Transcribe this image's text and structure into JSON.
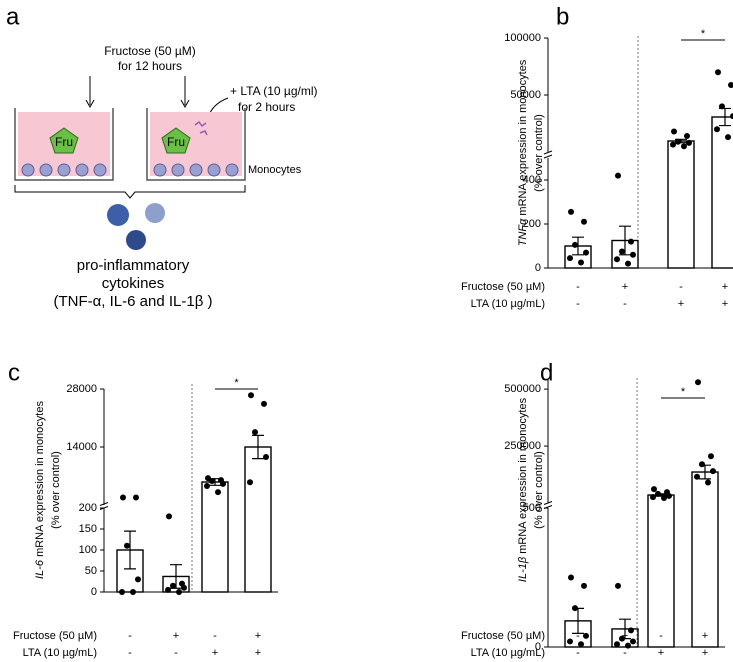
{
  "diagram": {
    "panel": "a",
    "step1": [
      "Fructose (50 µM)",
      "for 12 hours"
    ],
    "step2": [
      "+ LTA (10 µg/ml)",
      "for 2 hours"
    ],
    "marker": "Fru",
    "cells": "Monocytes",
    "outcome": [
      "pro-inflammatory",
      "cytokines",
      "(TNF-α, IL-6 and IL-1β )"
    ]
  },
  "chart_data": [
    {
      "type": "bar",
      "panel": "b",
      "ylabel": {
        "gene": "TNFα",
        "text": " mRNA expression in monocytes",
        "unit": "(% over control)"
      },
      "conditions": [
        {
          "name": "Fructose (50 µM)",
          "signs": [
            "-",
            "+",
            "-",
            "+"
          ]
        },
        {
          "name": "LTA (10 µg/mL)",
          "signs": [
            "-",
            "-",
            "+",
            "+"
          ]
        }
      ],
      "segments": [
        {
          "ylim": [
            0,
            500
          ],
          "yticks": [
            0,
            200,
            400
          ]
        },
        {
          "ylim": [
            0,
            100000
          ],
          "yticks": [
            50000,
            100000
          ]
        }
      ],
      "segment": [
        0,
        0,
        1,
        1
      ],
      "color": "#000000",
      "values": [
        100,
        125,
        9650,
        30700
      ],
      "errors": [
        40,
        65,
        1500,
        7500
      ],
      "points": [
        [
          255,
          210,
          105,
          70,
          45,
          25
        ],
        [
          420,
          120,
          75,
          60,
          40,
          20
        ],
        [
          18000,
          14000,
          9000,
          8000,
          6500,
          5000
        ],
        [
          70000,
          58800,
          40000,
          31500,
          20000,
          13000
        ]
      ],
      "significance": {
        "label": "*",
        "between": [
          2,
          3
        ]
      }
    },
    {
      "type": "bar",
      "panel": "c",
      "ylabel": {
        "gene": "IL-6",
        "text": " mRNA expression in monocytes",
        "unit": "(% over control)"
      },
      "conditions": [
        {
          "name": "Fructose (50 µM)",
          "signs": [
            "-",
            "+",
            "-",
            "+"
          ]
        },
        {
          "name": "LTA (10 µg/mL)",
          "signs": [
            "-",
            "-",
            "+",
            "+"
          ]
        }
      ],
      "segments": [
        {
          "ylim": [
            0,
            200
          ],
          "yticks": [
            0,
            50,
            100,
            150,
            200
          ]
        },
        {
          "ylim": [
            0,
            28000
          ],
          "yticks": [
            14000,
            28000
          ]
        }
      ],
      "segment": [
        0,
        0,
        1,
        1
      ],
      "color": "#000000",
      "values": [
        100,
        37,
        5550,
        14000
      ],
      "errors": [
        45,
        28,
        800,
        2800
      ],
      "points": [
        [
          225,
          225,
          110,
          30,
          0,
          0
        ],
        [
          180,
          20,
          15,
          10,
          5,
          0
        ],
        [
          6500,
          6000,
          5800,
          5100,
          4600,
          3100
        ],
        [
          26500,
          24400,
          17600,
          11600,
          5500
        ]
      ],
      "significance": {
        "label": "*",
        "between": [
          2,
          3
        ]
      }
    },
    {
      "type": "bar",
      "panel": "d",
      "ylabel": {
        "gene": "IL-1β",
        "text": " mRNA expression in monocytes",
        "unit": "(% over control)"
      },
      "conditions": [
        {
          "name": "Fructose (50 µM)",
          "signs": [
            "-",
            "+",
            "-",
            "+"
          ]
        },
        {
          "name": "LTA (10 µg/mL)",
          "signs": [
            "-",
            "-",
            "+",
            "+"
          ]
        }
      ],
      "segments": [
        {
          "ylim": [
            0,
            500
          ],
          "yticks": [
            0,
            500
          ]
        },
        {
          "ylim": [
            0,
            540000
          ],
          "yticks": [
            250000,
            500000
          ]
        }
      ],
      "segment": [
        0,
        0,
        1,
        1
      ],
      "color": "#000000",
      "values": [
        94,
        65,
        35000,
        136000
      ],
      "errors": [
        45,
        35,
        5000,
        30000
      ],
      "points": [
        [
          250,
          220,
          140,
          40,
          20,
          10
        ],
        [
          220,
          60,
          30,
          20,
          10,
          5
        ],
        [
          61000,
          48000,
          40000,
          31000,
          26000,
          22000
        ],
        [
          530000,
          205000,
          170000,
          140000,
          115000,
          90000
        ]
      ],
      "significance": {
        "label": "*",
        "between": [
          2,
          3
        ]
      }
    }
  ]
}
